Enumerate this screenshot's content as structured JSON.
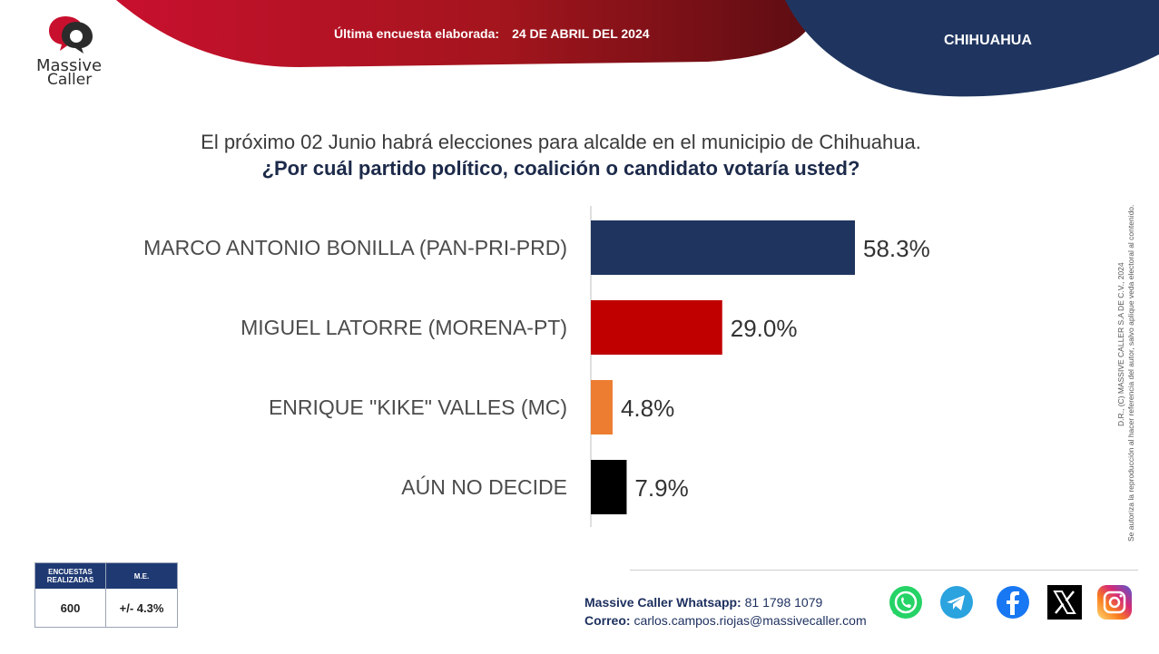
{
  "header": {
    "survey_label": "Última encuesta elaborada:",
    "survey_date": "24 DE ABRIL DEL 2024",
    "region": "CHIHUAHUA",
    "logo_line1": "Massive",
    "logo_line2": "Caller"
  },
  "question": {
    "line1": "El próximo 02 Junio habrá elecciones para alcalde en el municipio de Chihuahua.",
    "line2": "¿Por cuál partido político, coalición o candidato votaría usted?"
  },
  "chart_data": {
    "type": "bar",
    "orientation": "horizontal",
    "categories": [
      "MARCO ANTONIO BONILLA (PAN-PRI-PRD)",
      "MIGUEL LATORRE (MORENA-PT)",
      "ENRIQUE \"KIKE\" VALLES (MC)",
      "AÚN NO DECIDE"
    ],
    "values": [
      58.3,
      29.0,
      4.8,
      7.9
    ],
    "value_labels": [
      "58.3%",
      "29.0%",
      "4.8%",
      "7.9%"
    ],
    "colors": [
      "#1f3560",
      "#c00000",
      "#ed7d31",
      "#000000"
    ],
    "xlim": [
      0,
      100
    ],
    "grid": false,
    "legend": "none"
  },
  "stats": {
    "col1_header": "ENCUESTAS REALIZADAS",
    "col2_header": "M.E.",
    "col1_value": "600",
    "col2_value": "+/- 4.3%"
  },
  "contact": {
    "whatsapp_label": "Massive Caller Whatsapp:",
    "whatsapp_number": "81 1798 1079",
    "email_label": "Correo:",
    "email": "carlos.campos.riojas@massivecaller.com"
  },
  "social": [
    {
      "name": "whatsapp-icon",
      "color": "#25d366"
    },
    {
      "name": "telegram-icon",
      "color": "#2aa3df"
    },
    {
      "name": "facebook-icon",
      "color": "#1877f2"
    },
    {
      "name": "x-icon",
      "color": "#000000"
    },
    {
      "name": "instagram-icon",
      "color": "#d62976"
    }
  ],
  "legal": {
    "line1": "D.R., (C) MASSIVE CALLER S.A DE C.V., 2024",
    "line2": "Se autoriza la reproducción al hacer referencia del autor, salvo aplique veda electoral al contenido."
  },
  "colors": {
    "banner_red": "#b5121b",
    "banner_navy": "#1f3560"
  }
}
